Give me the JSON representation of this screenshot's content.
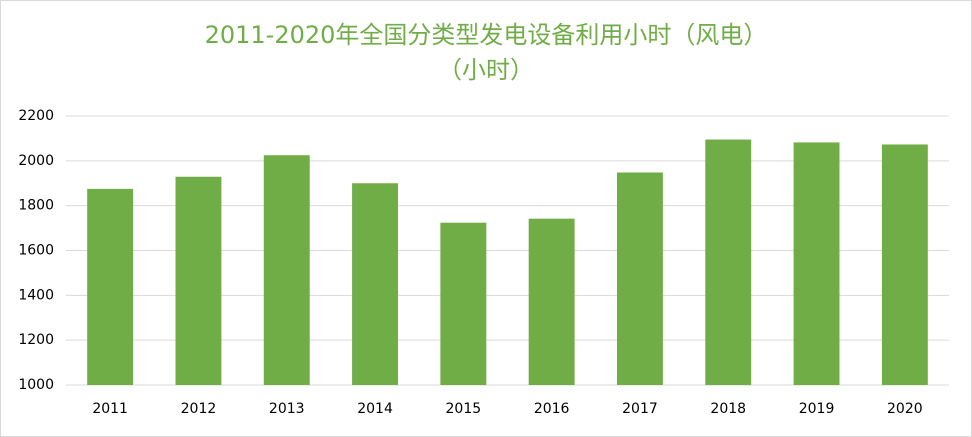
{
  "chart_data": {
    "type": "bar",
    "title": "2011-2020年全国分类型发电设备利用小时（风电）",
    "subtitle": "（小时）",
    "categories": [
      "2011",
      "2012",
      "2013",
      "2014",
      "2015",
      "2016",
      "2017",
      "2018",
      "2019",
      "2020"
    ],
    "values": [
      1875,
      1929,
      2025,
      1900,
      1724,
      1742,
      1948,
      2095,
      2082,
      2073
    ],
    "color": "#70ad47",
    "ylim": [
      1000,
      2200
    ],
    "yticks": [
      1000,
      1200,
      1400,
      1600,
      1800,
      2000,
      2200
    ],
    "grid": true
  }
}
